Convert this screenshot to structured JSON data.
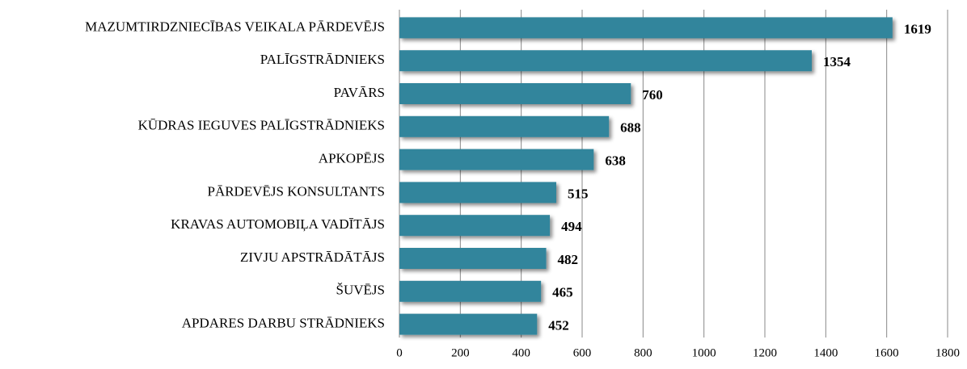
{
  "chart_data": {
    "type": "bar",
    "orientation": "horizontal",
    "categories": [
      "MAZUMTIRDZNIECĪBAS VEIKALA PĀRDEVĒJS",
      "PALĪGSTRĀDNIEKS",
      "PAVĀRS",
      "KŪDRAS IEGUVES PALĪGSTRĀDNIEKS",
      "APKOPĒJS",
      "PĀRDEVĒJS KONSULTANTS",
      "KRAVAS AUTOMOBIĻA VADĪTĀJS",
      "ZIVJU APSTRĀDĀTĀJS",
      "ŠUVĒJS",
      "APDARES DARBU STRĀDNIEKS"
    ],
    "values": [
      1619,
      1354,
      760,
      688,
      638,
      515,
      494,
      482,
      465,
      452
    ],
    "color": "#31859c",
    "xlim": [
      0,
      1800
    ],
    "xticks": [
      0,
      200,
      400,
      600,
      800,
      1000,
      1200,
      1400,
      1600,
      1800
    ],
    "grid": true
  }
}
